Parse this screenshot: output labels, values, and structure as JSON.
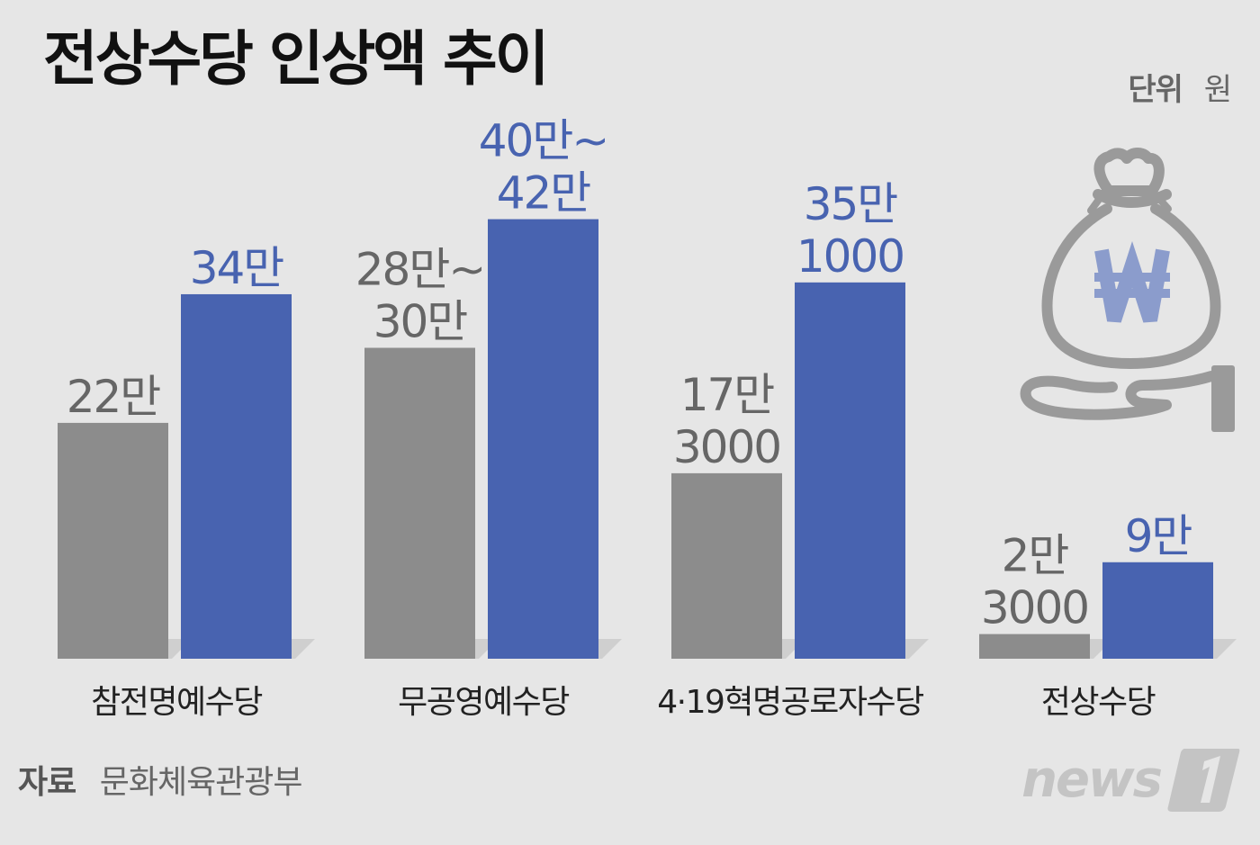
{
  "header": {
    "title": "전상수당 인상액 추이",
    "unit_label": "단위",
    "unit_value": "원"
  },
  "footer": {
    "source_label": "자료",
    "source_value": "문화체육관광부",
    "logo_text": "news"
  },
  "colors": {
    "before": "#8c8c8c",
    "after": "#4863b0",
    "label_before": "#666666",
    "label_after": "#4863b0",
    "icon": "#9a9a9a",
    "icon_symbol": "#8b9ccc"
  },
  "icons": [
    "money-bag-icon",
    "won-sign-icon",
    "open-hand-icon",
    "news1-logo-icon"
  ],
  "chart_data": {
    "type": "bar",
    "categories": [
      "참전명예수당",
      "무공영예수당",
      "4·19혁명공로자수당",
      "전상수당"
    ],
    "series": [
      {
        "values": [
          220000,
          290000,
          173000,
          23000
        ],
        "labels": [
          [
            "22만"
          ],
          [
            "28만~",
            "30만"
          ],
          [
            "17만",
            "3000"
          ],
          [
            "2만",
            "3000"
          ]
        ]
      },
      {
        "values": [
          340000,
          410000,
          351000,
          90000
        ],
        "labels": [
          [
            "34만"
          ],
          [
            "40만~",
            "42만"
          ],
          [
            "35만",
            "1000"
          ],
          [
            "9만"
          ]
        ]
      }
    ],
    "ranges": [
      null,
      {
        "before": [
          280000,
          300000
        ],
        "after": [
          400000,
          420000
        ]
      },
      null,
      null
    ],
    "ylim": [
      0,
      460000
    ],
    "grid": false,
    "legend": "none"
  }
}
